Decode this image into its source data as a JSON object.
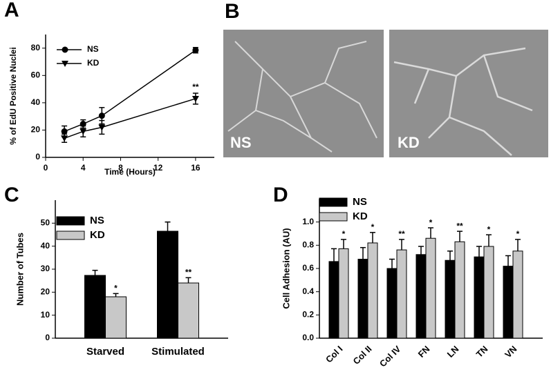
{
  "chart_data": [
    {
      "type": "line",
      "panel": "A",
      "x_label": "Time (Hours)",
      "y_label": "% of EdU Positive Nuclei",
      "x": [
        2,
        4,
        6,
        16
      ],
      "xlim": [
        0,
        18
      ],
      "xticks": [
        0,
        4,
        8,
        12,
        16
      ],
      "ylim": [
        0,
        90
      ],
      "yticks": [
        0,
        20,
        40,
        60,
        80
      ],
      "series": [
        {
          "name": "NS",
          "color": "#000000",
          "marker": "circle",
          "values": [
            19,
            24.5,
            30.5,
            78.5
          ],
          "errors": [
            4,
            3,
            6,
            2
          ],
          "annotations": [
            null,
            null,
            null,
            null
          ]
        },
        {
          "name": "KD",
          "color": "#000000",
          "marker": "triangle-down",
          "values": [
            14,
            19,
            22,
            43
          ],
          "errors": [
            3,
            4,
            5,
            4
          ],
          "annotations": [
            null,
            null,
            null,
            "**"
          ]
        }
      ]
    },
    {
      "type": "bar",
      "panel": "C",
      "y_label": "Number of Tubes",
      "categories": [
        "Starved",
        "Stimulated"
      ],
      "ylim": [
        0,
        60
      ],
      "yticks": [
        0,
        10,
        20,
        30,
        40,
        50
      ],
      "series": [
        {
          "name": "NS",
          "color": "#000000",
          "values": [
            27.3,
            46.5
          ],
          "errors": [
            2.2,
            4
          ],
          "annotations": [
            null,
            null
          ]
        },
        {
          "name": "KD",
          "color": "#c8c8c8",
          "values": [
            18,
            24
          ],
          "errors": [
            1.4,
            2.3
          ],
          "annotations": [
            "*",
            "**"
          ]
        }
      ]
    },
    {
      "type": "bar",
      "panel": "D",
      "y_label": "Cell Adhesion (AU)",
      "categories": [
        "Col I",
        "Col II",
        "Col IV",
        "FN",
        "LN",
        "TN",
        "VN"
      ],
      "ylim": [
        0,
        1.2
      ],
      "yticks": [
        {
          "value": 0,
          "label": "0.0"
        },
        {
          "value": 0.2,
          "label": "0.2"
        },
        {
          "value": 0.4,
          "label": "0.4"
        },
        {
          "value": 0.6,
          "label": "0.6"
        },
        {
          "value": 0.8,
          "label": "0.8"
        },
        {
          "value": 1,
          "label": "1.0"
        }
      ],
      "series": [
        {
          "name": "NS",
          "color": "#000000",
          "values": [
            0.66,
            0.68,
            0.6,
            0.72,
            0.67,
            0.7,
            0.62
          ],
          "errors": [
            0.11,
            0.1,
            0.08,
            0.07,
            0.08,
            0.09,
            0.09
          ],
          "annotations": [
            null,
            null,
            null,
            null,
            null,
            null,
            null
          ]
        },
        {
          "name": "KD",
          "color": "#c8c8c8",
          "values": [
            0.77,
            0.82,
            0.76,
            0.86,
            0.83,
            0.79,
            0.75
          ],
          "errors": [
            0.08,
            0.09,
            0.09,
            0.09,
            0.09,
            0.1,
            0.1
          ],
          "annotations": [
            "*",
            "*",
            "**",
            "*",
            "**",
            "*",
            "*"
          ]
        }
      ]
    }
  ],
  "panel_b": {
    "panel": "B",
    "images": [
      {
        "label": "NS"
      },
      {
        "label": "KD"
      }
    ]
  }
}
